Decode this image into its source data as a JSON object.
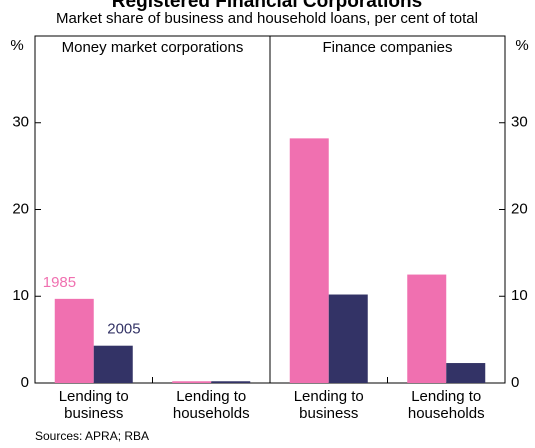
{
  "chart_data": {
    "type": "bar",
    "title": "Registered Financial Corporations",
    "subtitle": "Market share of business and household loans, per cent of total",
    "y_label": "%",
    "categories": [
      "Lending to business",
      "Lending to households"
    ],
    "series": [
      {
        "name": "1985",
        "color": "#f070b0"
      },
      {
        "name": "2005",
        "color": "#333366"
      }
    ],
    "panels": [
      {
        "title": "Money market corporations",
        "values": [
          [
            9.7,
            0.2
          ],
          [
            4.3,
            0.2
          ]
        ]
      },
      {
        "title": "Finance companies",
        "values": [
          [
            28.2,
            12.5
          ],
          [
            10.2,
            2.3
          ]
        ]
      }
    ],
    "ylim": [
      0,
      40
    ],
    "yticks": [
      0,
      10,
      20,
      30
    ],
    "source": "Sources: APRA; RBA"
  }
}
